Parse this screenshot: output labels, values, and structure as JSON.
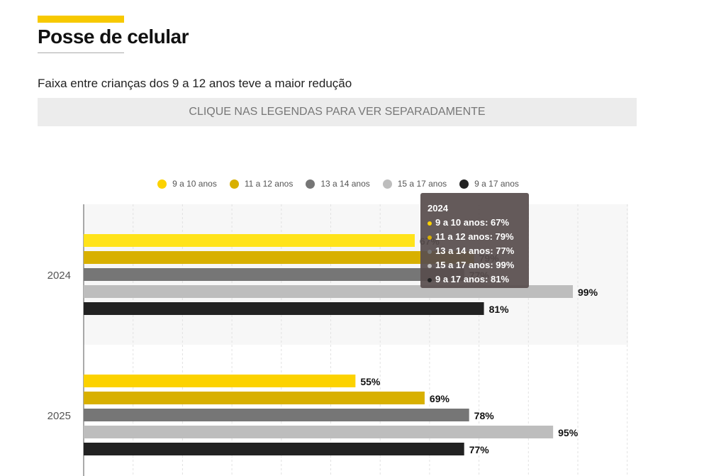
{
  "header": {
    "title": "Posse de celular",
    "subtitle": "Faixa entre crianças dos 9 a 12 anos teve a maior redução",
    "hint": "CLIQUE NAS LEGENDAS PARA VER SEPARADAMENTE"
  },
  "chart_data": {
    "type": "bar",
    "orientation": "horizontal",
    "categories": [
      "2024",
      "2025"
    ],
    "series": [
      {
        "name": "9 a 10 anos",
        "color": "#fcd200",
        "values": [
          67,
          55
        ]
      },
      {
        "name": "11 a 12 anos",
        "color": "#d8b000",
        "values": [
          79,
          69
        ]
      },
      {
        "name": "13 a 14 anos",
        "color": "#767676",
        "values": [
          77,
          78
        ]
      },
      {
        "name": "15 a 17 anos",
        "color": "#bdbdbd",
        "values": [
          99,
          95
        ]
      },
      {
        "name": "9 a 17 anos",
        "color": "#222222",
        "values": [
          81,
          77
        ]
      }
    ],
    "xlim": [
      0,
      100
    ],
    "grid": true,
    "legend": "top",
    "labels": [
      [
        "67%",
        "79%",
        "77%",
        "99%",
        "81%"
      ],
      [
        "55%",
        "69%",
        "78%",
        "95%",
        "77%"
      ]
    ]
  },
  "tooltip": {
    "title": "2024",
    "rows": [
      "9 a 10 anos: 67%",
      "11 a 12 anos: 79%",
      "13 a 14 anos: 77%",
      "15 a 17 anos: 99%",
      "9 a 17 anos: 81%"
    ]
  }
}
